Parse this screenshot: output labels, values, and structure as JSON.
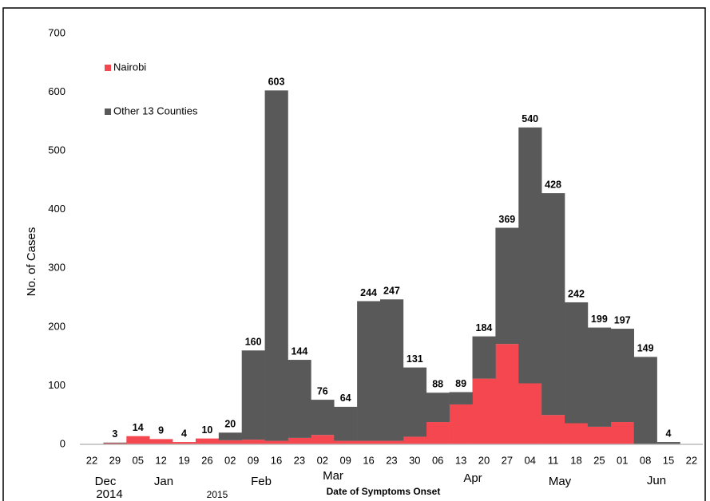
{
  "chart_data": {
    "type": "stacked-step-bar",
    "y_label": "No. of Cases",
    "x_label": "Date of Symptoms Onset",
    "categories": [
      "22",
      "29",
      "05",
      "12",
      "19",
      "26",
      "02",
      "09",
      "16",
      "23",
      "02",
      "09",
      "16",
      "23",
      "30",
      "06",
      "13",
      "20",
      "27",
      "04",
      "11",
      "18",
      "25",
      "01",
      "08",
      "15",
      "22"
    ],
    "month_labels": [
      "Dec",
      "2014",
      "Jan",
      "2015",
      "Feb",
      "Mar",
      "Apr",
      "May",
      "Jun"
    ],
    "series": [
      {
        "name": "Nairobi",
        "color": "#f5474f",
        "values": [
          null,
          2,
          14,
          9,
          4,
          10,
          7,
          8,
          6,
          11,
          16,
          6,
          6,
          6,
          13,
          38,
          68,
          112,
          171,
          104,
          50,
          36,
          30,
          38,
          0,
          0,
          null
        ]
      },
      {
        "name": "Other 13 Counties",
        "color": "#595959",
        "values": [
          null,
          1,
          0,
          0,
          0,
          0,
          13,
          152,
          597,
          133,
          60,
          58,
          238,
          241,
          118,
          50,
          21,
          72,
          198,
          436,
          378,
          206,
          169,
          159,
          149,
          4,
          null
        ]
      }
    ],
    "total_labels": [
      null,
      3,
      14,
      9,
      4,
      10,
      20,
      160,
      603,
      144,
      76,
      64,
      244,
      247,
      131,
      88,
      89,
      184,
      369,
      540,
      428,
      242,
      199,
      197,
      149,
      4,
      null
    ],
    "ylim": [
      0,
      700
    ],
    "yticks": [
      0,
      100,
      200,
      300,
      400,
      500,
      600,
      700
    ],
    "grid": false,
    "legend": "upper-left"
  }
}
